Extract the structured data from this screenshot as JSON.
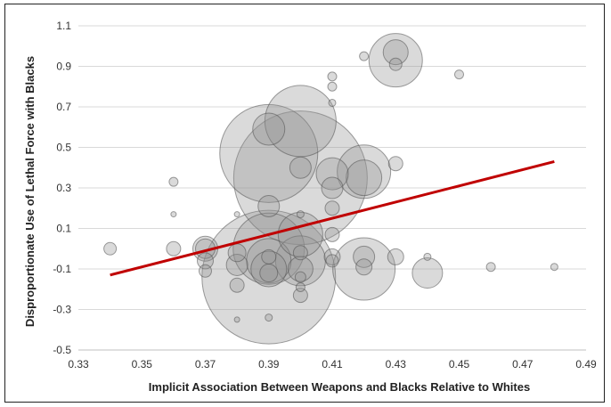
{
  "chart_data": {
    "type": "scatter",
    "subtype": "bubble",
    "title": "",
    "xlabel": "Implicit Association Between Weapons and Blacks Relative to Whites",
    "ylabel": "Disproportionate Use of Lethal Force with Blacks",
    "xlim": [
      0.33,
      0.49
    ],
    "ylim": [
      -0.5,
      1.1
    ],
    "x_ticks": [
      "0.33",
      "0.35",
      "0.37",
      "0.39",
      "0.41",
      "0.43",
      "0.45",
      "0.47",
      "0.49"
    ],
    "y_ticks": [
      "1.1",
      "0.9",
      "0.7",
      "0.5",
      "0.3",
      "0.1",
      "-0.1",
      "-0.3",
      "-0.5"
    ],
    "grid": "horizontal",
    "legend": "none",
    "trendline": {
      "color": "#c00000",
      "x": [
        0.34,
        0.48
      ],
      "y": [
        -0.13,
        0.43
      ]
    },
    "points": [
      {
        "x": 0.34,
        "y": 0.0,
        "r": 7
      },
      {
        "x": 0.36,
        "y": 0.33,
        "r": 5
      },
      {
        "x": 0.36,
        "y": 0.17,
        "r": 3
      },
      {
        "x": 0.36,
        "y": 0.0,
        "r": 8
      },
      {
        "x": 0.37,
        "y": 0.0,
        "r": 14
      },
      {
        "x": 0.37,
        "y": 0.0,
        "r": 11
      },
      {
        "x": 0.37,
        "y": -0.06,
        "r": 9
      },
      {
        "x": 0.37,
        "y": -0.11,
        "r": 7
      },
      {
        "x": 0.38,
        "y": -0.02,
        "r": 10
      },
      {
        "x": 0.38,
        "y": -0.08,
        "r": 12
      },
      {
        "x": 0.38,
        "y": -0.18,
        "r": 8
      },
      {
        "x": 0.38,
        "y": -0.35,
        "r": 3
      },
      {
        "x": 0.38,
        "y": 0.17,
        "r": 3
      },
      {
        "x": 0.39,
        "y": 0.47,
        "r": 55
      },
      {
        "x": 0.39,
        "y": 0.59,
        "r": 18
      },
      {
        "x": 0.39,
        "y": 0.21,
        "r": 12
      },
      {
        "x": 0.39,
        "y": 0.0,
        "r": 40
      },
      {
        "x": 0.39,
        "y": -0.06,
        "r": 25
      },
      {
        "x": 0.39,
        "y": -0.1,
        "r": 20
      },
      {
        "x": 0.39,
        "y": -0.14,
        "r": 75
      },
      {
        "x": 0.39,
        "y": -0.04,
        "r": 8
      },
      {
        "x": 0.39,
        "y": -0.12,
        "r": 10
      },
      {
        "x": 0.39,
        "y": -0.34,
        "r": 4
      },
      {
        "x": 0.4,
        "y": 0.63,
        "r": 40
      },
      {
        "x": 0.4,
        "y": 0.35,
        "r": 75
      },
      {
        "x": 0.4,
        "y": 0.4,
        "r": 12
      },
      {
        "x": 0.4,
        "y": 0.07,
        "r": 25
      },
      {
        "x": 0.4,
        "y": -0.02,
        "r": 8
      },
      {
        "x": 0.4,
        "y": -0.06,
        "r": 28
      },
      {
        "x": 0.4,
        "y": -0.1,
        "r": 14
      },
      {
        "x": 0.4,
        "y": -0.14,
        "r": 6
      },
      {
        "x": 0.4,
        "y": -0.23,
        "r": 8
      },
      {
        "x": 0.4,
        "y": 0.17,
        "r": 4
      },
      {
        "x": 0.4,
        "y": -0.19,
        "r": 5
      },
      {
        "x": 0.41,
        "y": 0.85,
        "r": 5
      },
      {
        "x": 0.41,
        "y": 0.8,
        "r": 5
      },
      {
        "x": 0.41,
        "y": 0.72,
        "r": 4
      },
      {
        "x": 0.41,
        "y": 0.37,
        "r": 18
      },
      {
        "x": 0.41,
        "y": 0.3,
        "r": 12
      },
      {
        "x": 0.41,
        "y": 0.2,
        "r": 8
      },
      {
        "x": 0.41,
        "y": 0.07,
        "r": 8
      },
      {
        "x": 0.41,
        "y": -0.04,
        "r": 9
      },
      {
        "x": 0.41,
        "y": -0.06,
        "r": 7
      },
      {
        "x": 0.42,
        "y": 0.95,
        "r": 5
      },
      {
        "x": 0.42,
        "y": 0.38,
        "r": 30
      },
      {
        "x": 0.42,
        "y": 0.35,
        "r": 20
      },
      {
        "x": 0.42,
        "y": -0.04,
        "r": 12
      },
      {
        "x": 0.42,
        "y": -0.1,
        "r": 35
      },
      {
        "x": 0.42,
        "y": -0.09,
        "r": 9
      },
      {
        "x": 0.43,
        "y": 0.93,
        "r": 30
      },
      {
        "x": 0.43,
        "y": 0.97,
        "r": 14
      },
      {
        "x": 0.43,
        "y": 0.91,
        "r": 7
      },
      {
        "x": 0.43,
        "y": 0.42,
        "r": 8
      },
      {
        "x": 0.43,
        "y": -0.04,
        "r": 9
      },
      {
        "x": 0.44,
        "y": -0.12,
        "r": 17
      },
      {
        "x": 0.44,
        "y": -0.04,
        "r": 4
      },
      {
        "x": 0.45,
        "y": 0.86,
        "r": 5
      },
      {
        "x": 0.46,
        "y": -0.09,
        "r": 5
      },
      {
        "x": 0.48,
        "y": -0.09,
        "r": 4
      }
    ]
  }
}
